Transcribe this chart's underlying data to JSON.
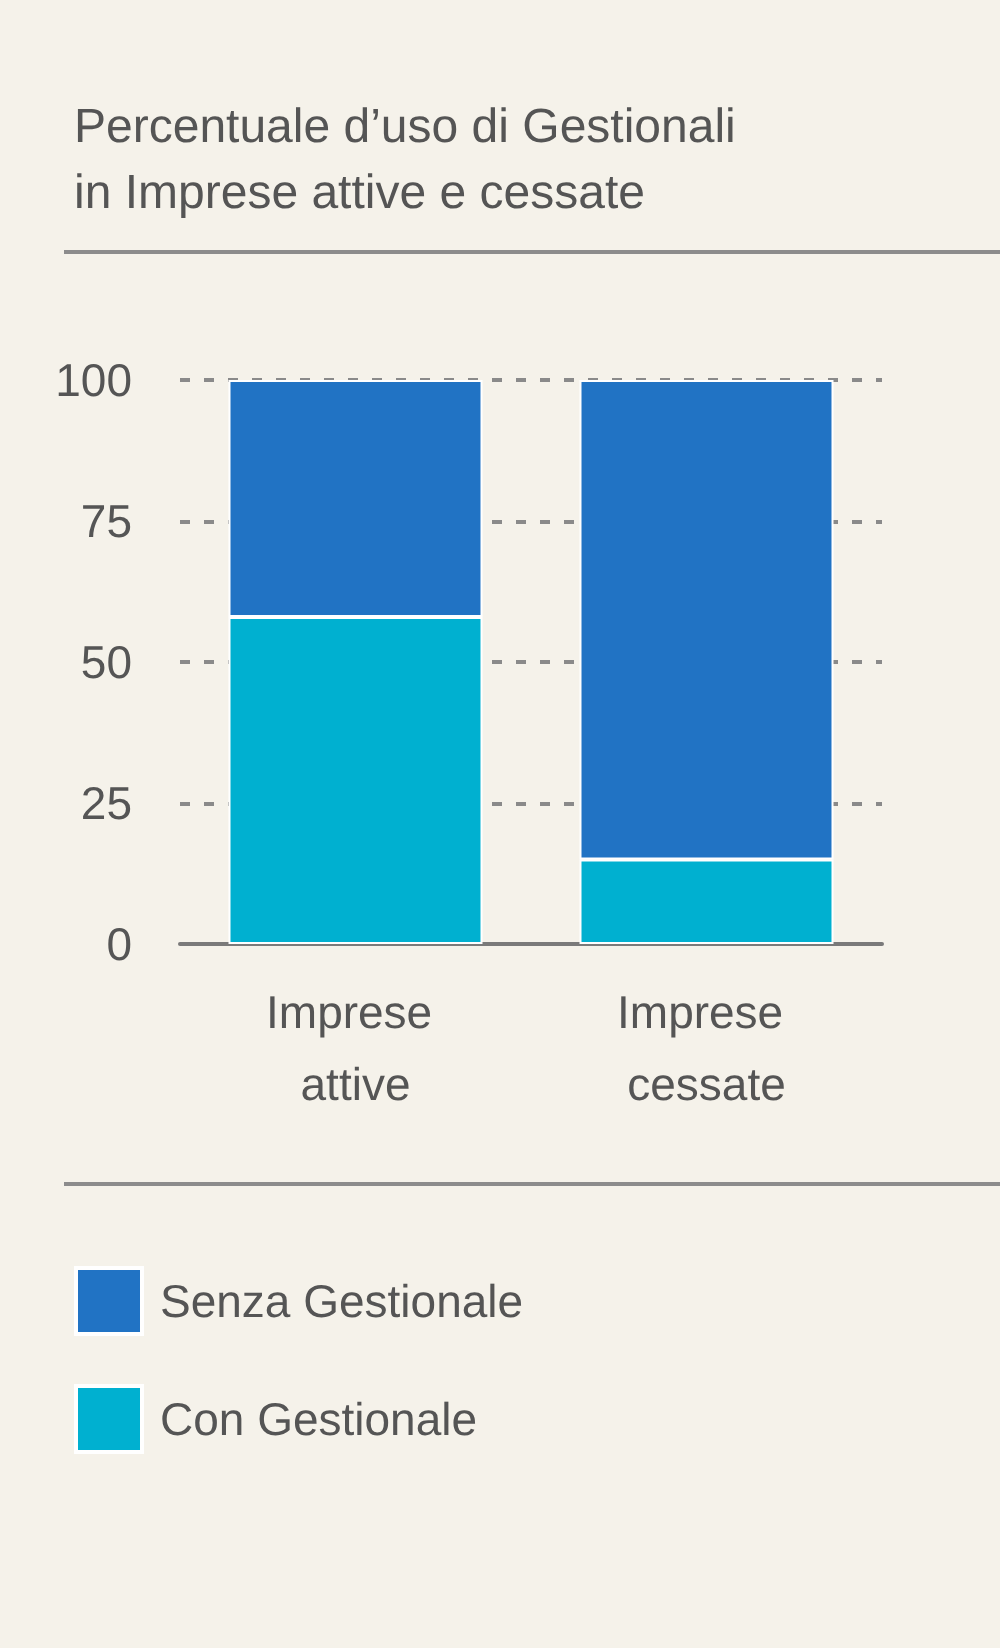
{
  "chart_data": {
    "type": "bar",
    "title": "Percentuale d’uso di Gestionali in Imprese attive e cessate",
    "categories": [
      "Imprese attive",
      "Imprese cessate"
    ],
    "series": [
      {
        "name": "Con Gestionale",
        "color": "#00b0d0",
        "values": [
          58,
          15
        ]
      },
      {
        "name": "Senza Gestionale",
        "color": "#2173c4",
        "values": [
          42,
          85
        ]
      }
    ],
    "stacked": true,
    "ylim": [
      0,
      100
    ],
    "yticks": [
      0,
      25,
      50,
      75,
      100
    ],
    "grid": "y",
    "legend": "bottom left"
  }
}
